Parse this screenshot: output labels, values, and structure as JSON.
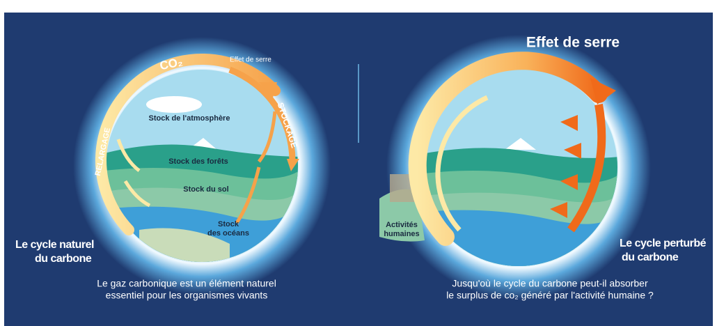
{
  "left": {
    "co2": "CO₂",
    "effet_de_serre": "Effet de serre",
    "stockage": "STOCKAGE",
    "relargage": "RELARGAGE",
    "stocks": [
      "Stock de l'atmosphère",
      "Stock des forêts",
      "Stock du sol",
      [
        "Stock",
        "des océans"
      ]
    ],
    "cycle_label": [
      "Le cycle naturel",
      "du carbone"
    ],
    "caption": [
      "Le gaz carbonique est un élément naturel",
      "essentiel pour les organismes vivants"
    ]
  },
  "right": {
    "effet_de_serre": "Effet de serre",
    "activites": [
      "Activités",
      "humaines"
    ],
    "cycle_label": [
      "Le cycle perturbé",
      "du carbone"
    ],
    "caption": [
      "Jusqu'où le cycle du carbone peut-il absorber",
      "le surplus de co₂ généré par l'activité humaine ?"
    ]
  }
}
